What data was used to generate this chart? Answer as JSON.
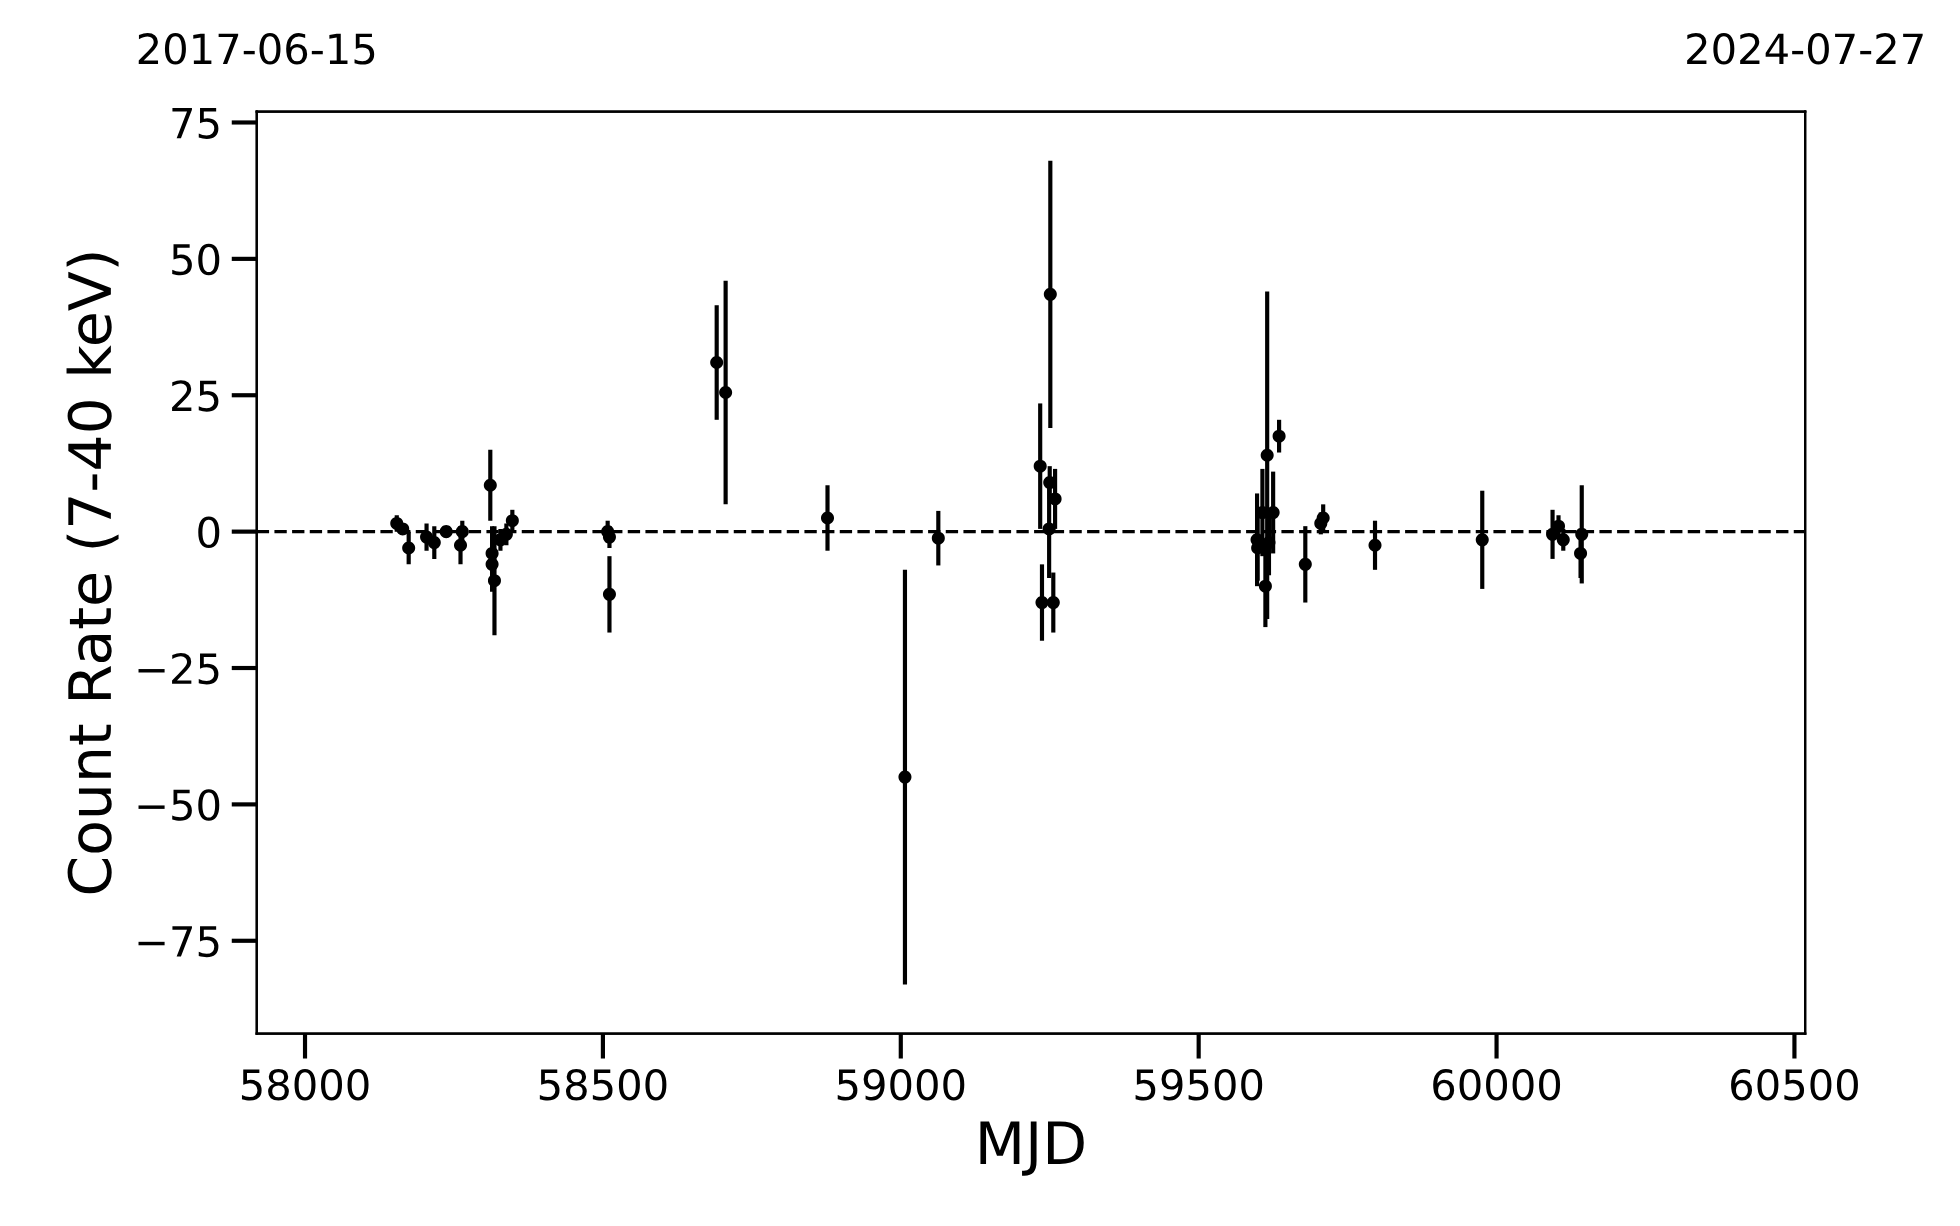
{
  "chart_data": {
    "type": "scatter",
    "xlabel": "MJD",
    "ylabel": "Count Rate (7-40 keV)",
    "x": [
      58154,
      58164,
      58174,
      58204,
      58217,
      58237,
      58261,
      58264,
      58311,
      58314,
      58314,
      58318,
      58328,
      58338,
      58348,
      58508,
      58511,
      58511,
      58691,
      58706,
      58877,
      59063,
      59007,
      59234,
      59251,
      59259,
      59249,
      59237,
      59256,
      59250,
      59598,
      59599,
      59607,
      59612,
      59615,
      59625,
      59635,
      59618,
      59679,
      59705,
      59709,
      59796,
      59976,
      60094,
      60104,
      60112,
      60143,
      60141
    ],
    "values": [
      1.5,
      0.5,
      -3,
      -1,
      -2,
      0,
      -2.5,
      0,
      8.5,
      -4,
      -6,
      -9,
      -1.5,
      -0.5,
      2,
      0,
      -1,
      -11.5,
      31,
      25.5,
      2.5,
      -1.2,
      -45,
      12,
      43.5,
      6,
      0.5,
      -13,
      -13,
      9,
      -1.5,
      -3,
      3.5,
      -10,
      14,
      3.5,
      17.5,
      -2,
      -6,
      1.5,
      2.5,
      -2.5,
      -1.5,
      -0.5,
      1,
      -1.5,
      -0.5,
      -4
    ],
    "errors": [
      1.5,
      1,
      3,
      2.5,
      3,
      1,
      3.5,
      2,
      6.5,
      5,
      5,
      10,
      2,
      2,
      2,
      2,
      2,
      7,
      10.5,
      20.5,
      6,
      5,
      38,
      11.5,
      24.5,
      5.5,
      9,
      7,
      5.5,
      3,
      8.5,
      6,
      8,
      7.5,
      30,
      7.5,
      3,
      6,
      7,
      2,
      2.5,
      4.5,
      9,
      4.5,
      2,
      2,
      9,
      4.5
    ],
    "color": "#000000",
    "marker": "circle",
    "xlim": [
      57919,
      60518
    ],
    "xticks": [
      58000,
      58500,
      59000,
      59500,
      60000,
      60500
    ],
    "ylim": [
      -92,
      77
    ],
    "yticks": [
      {
        "value": -75,
        "label": "−75"
      },
      {
        "value": -50,
        "label": "−50"
      },
      {
        "value": -25,
        "label": "−25"
      },
      0,
      25,
      50,
      75
    ],
    "x2lim": [
      "2017-06-15",
      "2024-07-27"
    ],
    "x2ticks": [
      "2017-06-15",
      "2024-07-27"
    ],
    "ref_lines": [
      {
        "axis": "y",
        "value": 0,
        "label": null,
        "color": "#000000",
        "line_style": "dashed"
      }
    ],
    "grid": false,
    "legend": false
  }
}
